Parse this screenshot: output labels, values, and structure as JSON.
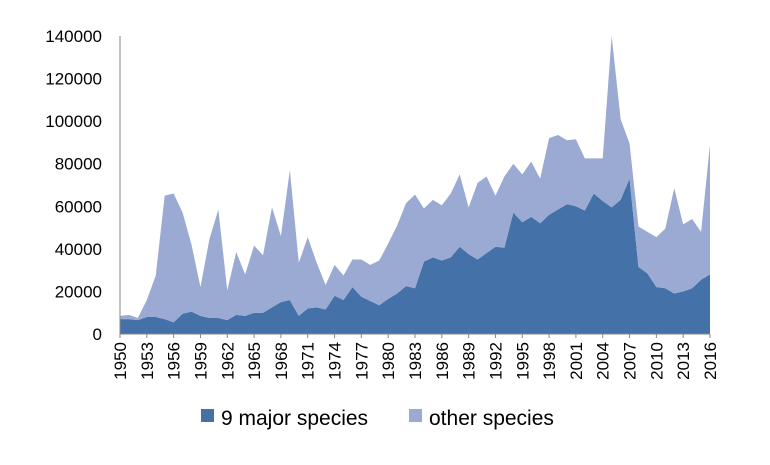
{
  "chart_data": {
    "type": "area",
    "stacked": true,
    "x": [
      1950,
      1951,
      1952,
      1953,
      1954,
      1955,
      1956,
      1957,
      1958,
      1959,
      1960,
      1961,
      1962,
      1963,
      1964,
      1965,
      1966,
      1967,
      1968,
      1969,
      1970,
      1971,
      1972,
      1973,
      1974,
      1975,
      1976,
      1977,
      1978,
      1979,
      1980,
      1981,
      1982,
      1983,
      1984,
      1985,
      1986,
      1987,
      1988,
      1989,
      1990,
      1991,
      1992,
      1993,
      1994,
      1995,
      1996,
      1997,
      1998,
      1999,
      2000,
      2001,
      2002,
      2003,
      2004,
      2005,
      2006,
      2007,
      2008,
      2009,
      2010,
      2011,
      2012,
      2013,
      2014,
      2015,
      2016
    ],
    "x_tick_labels": [
      "1950",
      "1953",
      "1956",
      "1959",
      "1962",
      "1965",
      "1968",
      "1971",
      "1974",
      "1977",
      "1980",
      "1983",
      "1986",
      "1989",
      "1992",
      "1995",
      "1998",
      "2001",
      "2004",
      "2007",
      "2010",
      "2013",
      "2016"
    ],
    "y_tick_labels": [
      "0",
      "20000",
      "40000",
      "60000",
      "80000",
      "100000",
      "120000",
      "140000"
    ],
    "ylim": [
      0,
      140000
    ],
    "series": [
      {
        "name": "9 major species",
        "color": "#4472a8",
        "values": [
          7000,
          7000,
          6500,
          8000,
          8000,
          7000,
          5500,
          9500,
          10500,
          8500,
          7500,
          7500,
          6500,
          9000,
          8500,
          10000,
          10000,
          12500,
          15000,
          16000,
          8500,
          12000,
          12500,
          11500,
          18000,
          16000,
          22000,
          17500,
          15500,
          13500,
          16500,
          19000,
          22500,
          21500,
          34000,
          36000,
          34500,
          36000,
          41000,
          37500,
          35000,
          38000,
          41000,
          40500,
          57000,
          52500,
          55000,
          52000,
          56000,
          58500,
          61000,
          60000,
          58000,
          66000,
          62500,
          59500,
          63000,
          73000,
          31500,
          28500,
          22000,
          21500,
          19000,
          20000,
          21500,
          25500,
          28000
        ]
      },
      {
        "name": "other species",
        "color": "#9aaad2",
        "values": [
          1500,
          2000,
          1000,
          8000,
          19500,
          58000,
          60500,
          47500,
          31500,
          13500,
          37000,
          51000,
          14000,
          29500,
          19500,
          31500,
          27000,
          47000,
          31000,
          61000,
          25000,
          33500,
          21000,
          11500,
          14500,
          11500,
          13000,
          17500,
          17000,
          21000,
          26000,
          32000,
          39000,
          44000,
          25000,
          27000,
          26000,
          30000,
          34000,
          22000,
          36000,
          36000,
          24000,
          33500,
          23000,
          22500,
          26000,
          21000,
          36000,
          35000,
          30000,
          31500,
          24500,
          16500,
          20000,
          80500,
          38000,
          16500,
          19000,
          19500,
          23500,
          28000,
          49500,
          31500,
          32500,
          22500,
          61000
        ]
      }
    ],
    "title": "",
    "xlabel": "",
    "ylabel": "",
    "grid": false,
    "legend_position": "bottom"
  }
}
